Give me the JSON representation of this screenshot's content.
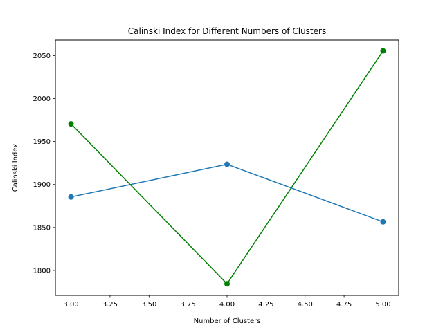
{
  "chart_data": {
    "type": "line",
    "title": "Calinski Index for Different Numbers of Clusters",
    "xlabel": "Number of Clusters",
    "ylabel": "Calinski Index",
    "x": [
      3,
      4,
      5
    ],
    "xlim": [
      2.9,
      5.1
    ],
    "ylim": [
      1771,
      2068
    ],
    "xticks": [
      3.0,
      3.25,
      3.5,
      3.75,
      4.0,
      4.25,
      4.5,
      4.75,
      5.0
    ],
    "xtick_labels": [
      "3.00",
      "3.25",
      "3.50",
      "3.75",
      "4.00",
      "4.25",
      "4.50",
      "4.75",
      "5.00"
    ],
    "yticks": [
      1800,
      1850,
      1900,
      1950,
      2000,
      2050
    ],
    "ytick_labels": [
      "1800",
      "1850",
      "1900",
      "1950",
      "2000",
      "2050"
    ],
    "grid": false,
    "legend": false,
    "series": [
      {
        "values": [
          1885.5,
          1923.5,
          1856.5
        ],
        "color": "#1f77b4",
        "marker": "circle"
      },
      {
        "values": [
          1970.5,
          1784.5,
          2055.5
        ],
        "color": "#008000",
        "marker": "circle"
      }
    ]
  }
}
